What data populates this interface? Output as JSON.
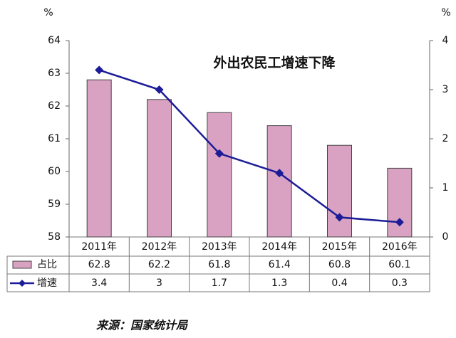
{
  "chart_data": {
    "type": "bar",
    "title": "外出农民工增速下降",
    "y_label": "%",
    "y2_label": "%",
    "source": "来源：国家统计局",
    "categories": [
      "2011年",
      "2012年",
      "2013年",
      "2014年",
      "2015年",
      "2016年"
    ],
    "series": [
      {
        "name": "占比",
        "type": "bar",
        "color": "#d9a2c2",
        "values": [
          62.8,
          62.2,
          61.8,
          61.4,
          60.8,
          60.1
        ]
      },
      {
        "name": "增速",
        "type": "line",
        "axis": "y2",
        "color": "#1c1c99",
        "values": [
          3.4,
          3,
          1.7,
          1.3,
          0.4,
          0.3
        ]
      }
    ],
    "ylim": [
      58,
      64
    ],
    "yticks": [
      58,
      59,
      60,
      61,
      62,
      63,
      64
    ],
    "y2lim": [
      0,
      4
    ],
    "y2ticks": [
      0,
      1,
      2,
      3,
      4
    ]
  }
}
